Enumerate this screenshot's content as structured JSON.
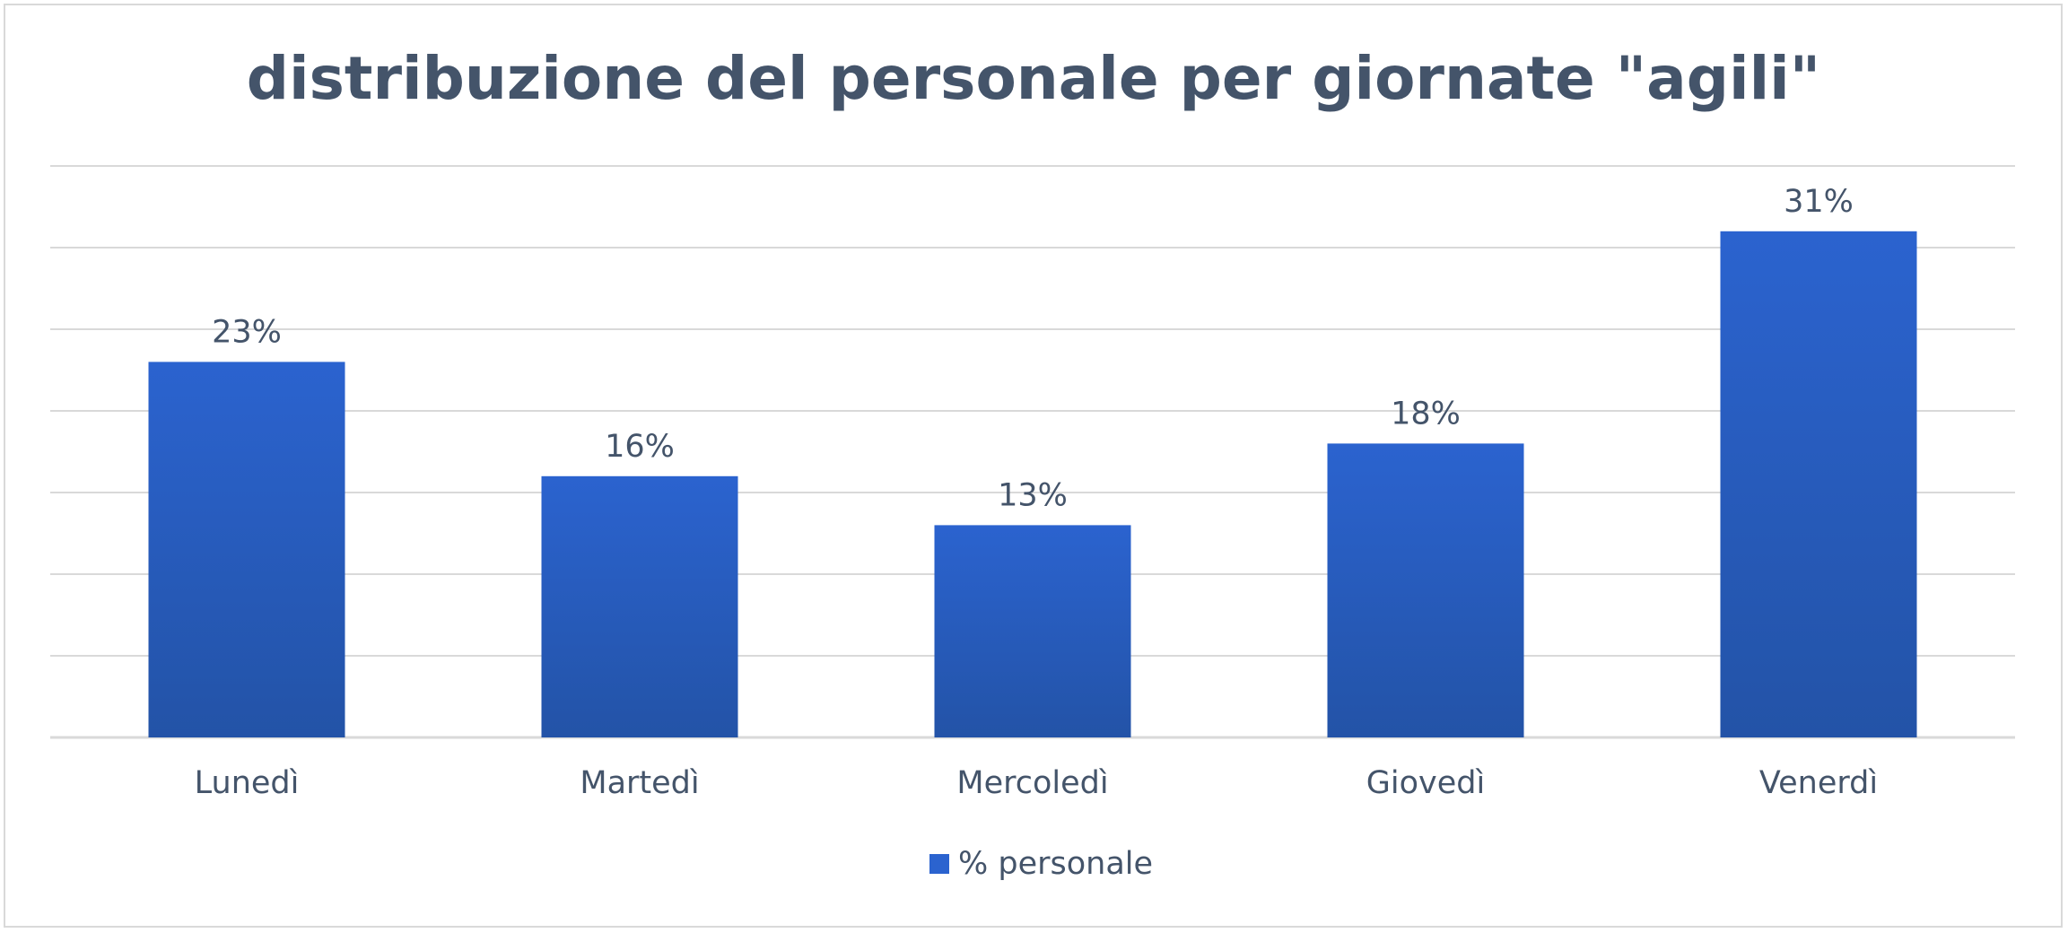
{
  "chart_data": {
    "type": "bar",
    "title": "distribuzione del personale per giornate \"agili\"",
    "xlabel": "",
    "ylabel": "",
    "categories": [
      "Lunedì",
      "Martedì",
      "Mercoledì",
      "Giovedì",
      "Venerdì"
    ],
    "series": [
      {
        "name": "% personale",
        "values": [
          23,
          16,
          13,
          18,
          31
        ],
        "data_labels": [
          "23%",
          "16%",
          "13%",
          "18%",
          "31%"
        ],
        "color": "#2b63cf",
        "color_dark": "#2353a7"
      }
    ],
    "ylim": [
      0,
      35
    ],
    "y_gridline_step": 5,
    "y_tick_labels_visible": false,
    "grid": true,
    "gridline_color": "#d9d9d9",
    "text_color": "#44546a",
    "legend": {
      "position": "bottom",
      "entries": [
        "% personale"
      ]
    }
  }
}
